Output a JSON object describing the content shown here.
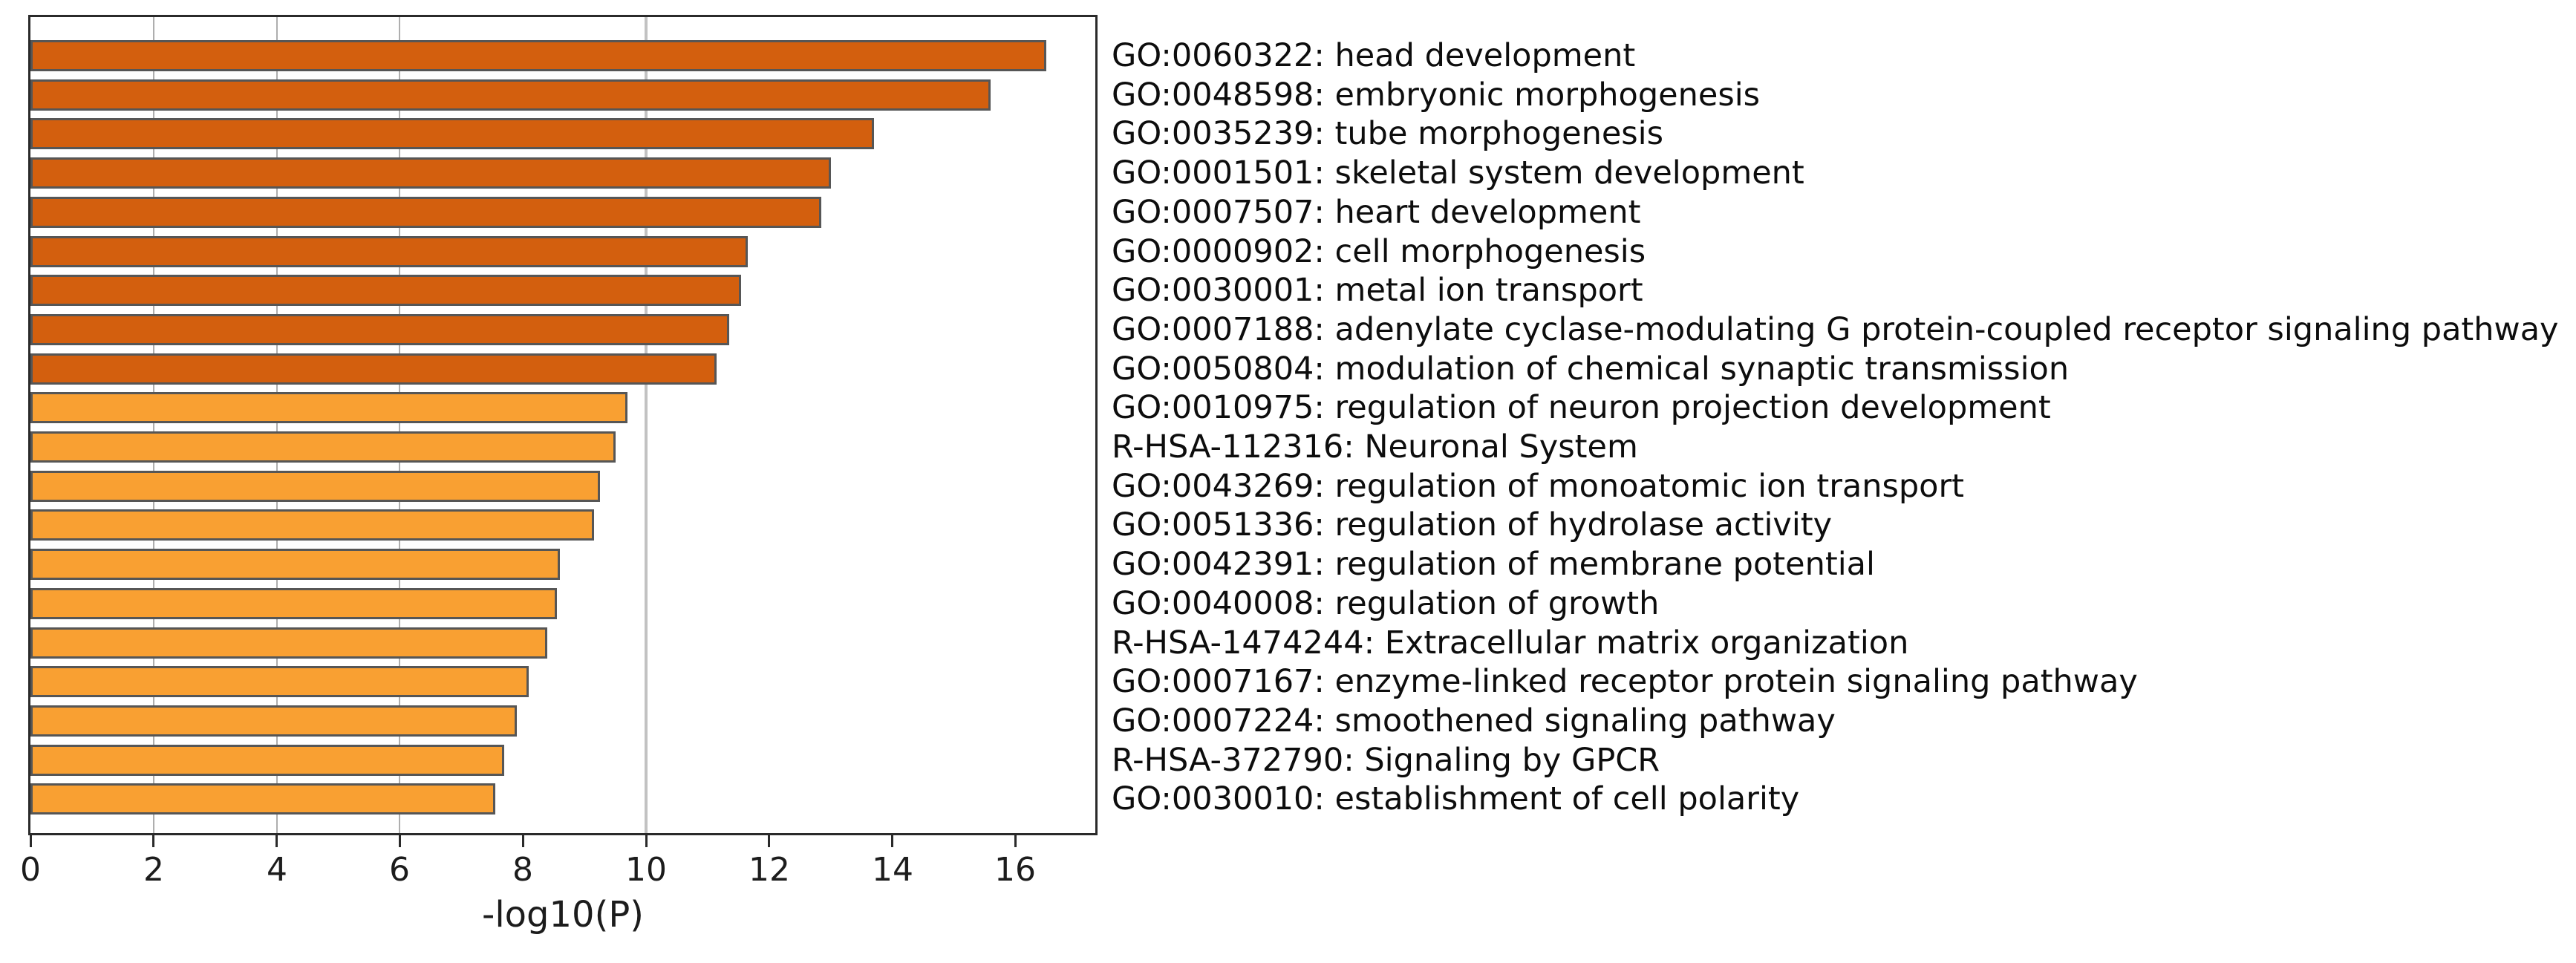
{
  "chart_data": {
    "type": "bar",
    "orientation": "horizontal",
    "title": "",
    "xlabel": "-log10(P)",
    "ylabel": "",
    "xlim": [
      0,
      17.3
    ],
    "xticks": [
      0,
      2,
      4,
      6,
      8,
      10,
      12,
      14,
      16
    ],
    "xtick_labels": [
      "0",
      "2",
      "4",
      "6",
      "8",
      "10",
      "12",
      "14",
      "16"
    ],
    "grid": "vertical gridlines at x=2,4,6 and a lighter full-height line at x=10, drawn behind bars",
    "grid_x_minor": [
      2,
      4,
      6
    ],
    "grid_x_major": [
      10
    ],
    "legend_position": "none",
    "palette": {
      "dark": "#D35F0E",
      "light": "#F9A032"
    },
    "color_meaning": {
      "dark": "-log10(P) between 10 and 20",
      "light": "-log10(P) between 6 and 10"
    },
    "bars": [
      {
        "label": "GO:0060322: head development",
        "value": 16.5,
        "tier": "dark"
      },
      {
        "label": "GO:0048598: embryonic morphogenesis",
        "value": 15.6,
        "tier": "dark"
      },
      {
        "label": "GO:0035239: tube morphogenesis",
        "value": 13.7,
        "tier": "dark"
      },
      {
        "label": "GO:0001501: skeletal system development",
        "value": 13.0,
        "tier": "dark"
      },
      {
        "label": "GO:0007507: heart development",
        "value": 12.85,
        "tier": "dark"
      },
      {
        "label": "GO:0000902: cell morphogenesis",
        "value": 11.65,
        "tier": "dark"
      },
      {
        "label": "GO:0030001: metal ion transport",
        "value": 11.55,
        "tier": "dark"
      },
      {
        "label": "GO:0007188: adenylate cyclase-modulating G protein-coupled receptor signaling pathway",
        "value": 11.35,
        "tier": "dark"
      },
      {
        "label": "GO:0050804: modulation of chemical synaptic transmission",
        "value": 11.15,
        "tier": "dark"
      },
      {
        "label": "GO:0010975: regulation of neuron projection development",
        "value": 9.7,
        "tier": "light"
      },
      {
        "label": "R-HSA-112316: Neuronal System",
        "value": 9.5,
        "tier": "light"
      },
      {
        "label": "GO:0043269: regulation of monoatomic ion transport",
        "value": 9.25,
        "tier": "light"
      },
      {
        "label": "GO:0051336: regulation of hydrolase activity",
        "value": 9.15,
        "tier": "light"
      },
      {
        "label": "GO:0042391: regulation of membrane potential",
        "value": 8.6,
        "tier": "light"
      },
      {
        "label": "GO:0040008: regulation of growth",
        "value": 8.55,
        "tier": "light"
      },
      {
        "label": "R-HSA-1474244: Extracellular matrix organization",
        "value": 8.4,
        "tier": "light"
      },
      {
        "label": "GO:0007167: enzyme-linked receptor protein signaling pathway",
        "value": 8.1,
        "tier": "light"
      },
      {
        "label": "GO:0007224: smoothened signaling pathway",
        "value": 7.9,
        "tier": "light"
      },
      {
        "label": "R-HSA-372790: Signaling by GPCR",
        "value": 7.7,
        "tier": "light"
      },
      {
        "label": "GO:0030010: establishment of cell polarity",
        "value": 7.55,
        "tier": "light"
      }
    ]
  }
}
